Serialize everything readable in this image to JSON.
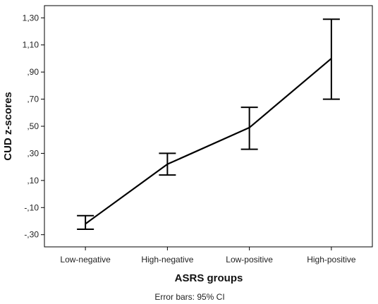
{
  "chart_data": {
    "type": "line",
    "categories": [
      "Low-negative",
      "High-negative",
      "Low-positive",
      "High-positive"
    ],
    "series": [
      {
        "values": [
          -0.22,
          0.22,
          0.49,
          1.0
        ],
        "ci_lower": [
          -0.26,
          0.14,
          0.33,
          0.7
        ],
        "ci_upper": [
          -0.16,
          0.3,
          0.64,
          1.29
        ],
        "color": "#000000"
      }
    ],
    "xlabel": "ASRS groups",
    "ylabel": "CUD z-scores",
    "ylim": [
      -0.39,
      1.39
    ],
    "yticks": [
      -0.3,
      -0.1,
      0.1,
      0.3,
      0.5,
      0.7,
      0.9,
      1.1,
      1.3
    ],
    "ytick_labels": [
      "-,30",
      "-,10",
      ",10",
      ",30",
      ",50",
      ",70",
      ",90",
      "1,10",
      "1,30"
    ],
    "grid": false,
    "footnote": "Error bars: 95% CI"
  }
}
